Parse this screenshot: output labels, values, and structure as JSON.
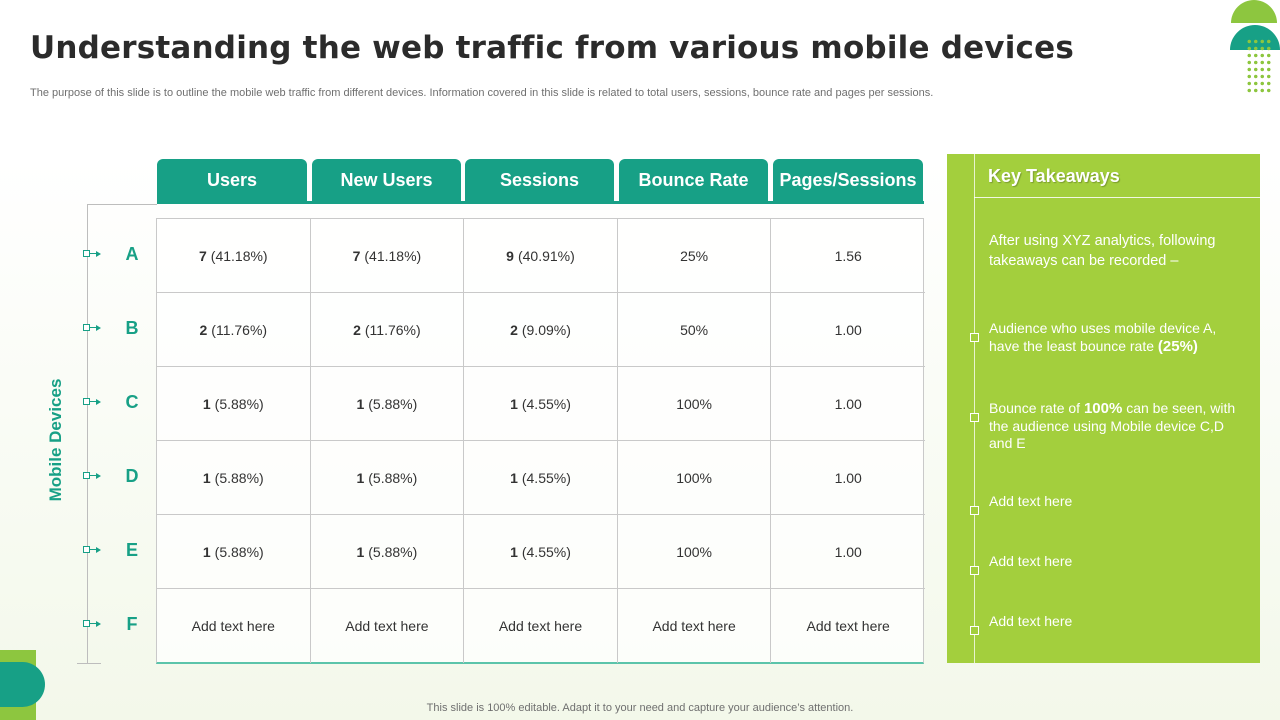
{
  "title": "Understanding the web traffic from various mobile devices",
  "subtitle": "The purpose of this slide is to outline the mobile web traffic from different devices. Information covered in this slide is related to total users, sessions, bounce rate and pages per sessions.",
  "colors": {
    "teal": "#17a086",
    "green": "#a3cf3d",
    "accent": "#8dc63f"
  },
  "table": {
    "columns": [
      "Users",
      "New Users",
      "Sessions",
      "Bounce Rate",
      "Pages/Sessions"
    ],
    "axis_label": "Mobile Devices",
    "rows": [
      {
        "device": "A",
        "cells": [
          {
            "bold": "7",
            "rest": "(41.18%)"
          },
          {
            "bold": "7",
            "rest": "(41.18%)"
          },
          {
            "bold": "9",
            "rest": "(40.91%)"
          },
          {
            "bold": "",
            "rest": "25%"
          },
          {
            "bold": "",
            "rest": "1.56"
          }
        ]
      },
      {
        "device": "B",
        "cells": [
          {
            "bold": "2",
            "rest": "(11.76%)"
          },
          {
            "bold": "2",
            "rest": "(11.76%)"
          },
          {
            "bold": "2",
            "rest": "(9.09%)"
          },
          {
            "bold": "",
            "rest": "50%"
          },
          {
            "bold": "",
            "rest": "1.00"
          }
        ]
      },
      {
        "device": "C",
        "cells": [
          {
            "bold": "1",
            "rest": "(5.88%)"
          },
          {
            "bold": "1",
            "rest": "(5.88%)"
          },
          {
            "bold": "1",
            "rest": "(4.55%)"
          },
          {
            "bold": "",
            "rest": "100%"
          },
          {
            "bold": "",
            "rest": "1.00"
          }
        ]
      },
      {
        "device": "D",
        "cells": [
          {
            "bold": "1",
            "rest": "(5.88%)"
          },
          {
            "bold": "1",
            "rest": "(5.88%)"
          },
          {
            "bold": "1",
            "rest": "(4.55%)"
          },
          {
            "bold": "",
            "rest": "100%"
          },
          {
            "bold": "",
            "rest": "1.00"
          }
        ]
      },
      {
        "device": "E",
        "cells": [
          {
            "bold": "1",
            "rest": "(5.88%)"
          },
          {
            "bold": "1",
            "rest": "(5.88%)"
          },
          {
            "bold": "1",
            "rest": "(4.55%)"
          },
          {
            "bold": "",
            "rest": "100%"
          },
          {
            "bold": "",
            "rest": "1.00"
          }
        ]
      },
      {
        "device": "F",
        "cells": [
          {
            "bold": "",
            "rest": "Add text here"
          },
          {
            "bold": "",
            "rest": "Add text here"
          },
          {
            "bold": "",
            "rest": "Add text here"
          },
          {
            "bold": "",
            "rest": "Add text here"
          },
          {
            "bold": "",
            "rest": "Add text here"
          }
        ]
      }
    ]
  },
  "takeaways": {
    "title": "Key Takeaways",
    "intro": "After using XYZ analytics, following takeaways can be recorded –",
    "items": [
      {
        "text": "Audience who uses mobile device A, have the least bounce rate ",
        "bold": "(25%)",
        "after": ""
      },
      {
        "text": "Bounce rate of ",
        "bold": "100%",
        "after": " can be seen, with the audience using Mobile device C,D and E"
      },
      {
        "text": "Add text here",
        "bold": "",
        "after": ""
      },
      {
        "text": "Add text here",
        "bold": "",
        "after": ""
      },
      {
        "text": "Add text here",
        "bold": "",
        "after": ""
      }
    ]
  },
  "footer": "This slide is 100% editable. Adapt it to your need and capture your audience’s attention."
}
